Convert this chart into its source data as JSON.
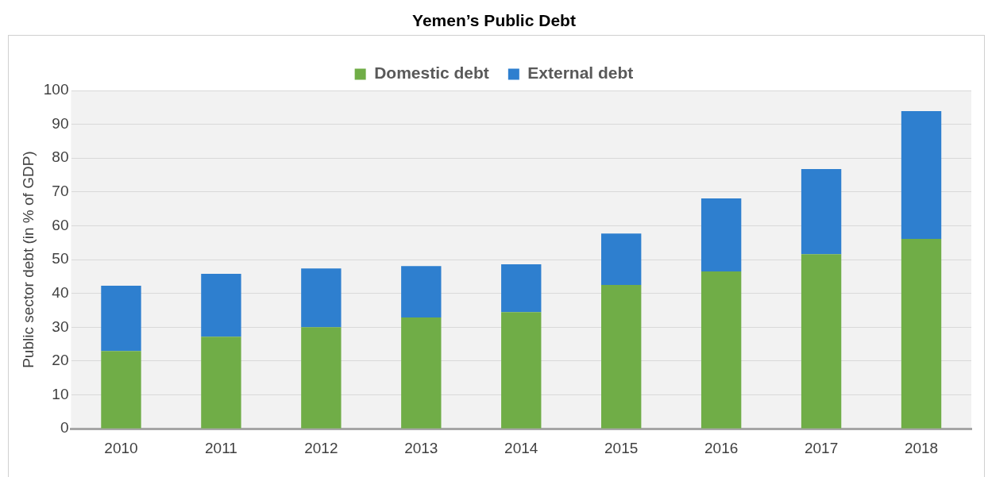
{
  "chart_data": {
    "type": "bar",
    "title": "Yemen’s Public Debt",
    "ylabel": "Public sector debt (in % of GDP)",
    "categories": [
      "2010",
      "2011",
      "2012",
      "2013",
      "2014",
      "2015",
      "2016",
      "2017",
      "2018"
    ],
    "series": [
      {
        "name": "Domestic debt",
        "color": "#70ad47",
        "values": [
          23.0,
          27.2,
          30.0,
          32.9,
          34.5,
          42.5,
          46.5,
          51.6,
          56.1
        ]
      },
      {
        "name": "External debt",
        "color": "#2e7fcf",
        "values": [
          19.3,
          18.6,
          17.4,
          15.2,
          14.1,
          15.2,
          21.6,
          25.2,
          37.8
        ]
      }
    ],
    "stacked": true,
    "ylim": [
      0,
      100
    ],
    "yticks": [
      0,
      10,
      20,
      30,
      40,
      50,
      60,
      70,
      80,
      90,
      100
    ],
    "grid": "y",
    "legend": "top"
  }
}
